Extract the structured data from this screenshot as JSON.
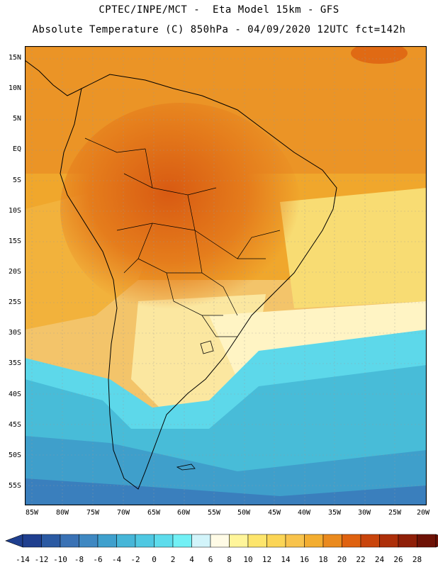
{
  "header": {
    "line1": "CPTEC/INPE/MCT -  Eta Model 15km - GFS",
    "line2": "Absolute Temperature (C) 850hPa - 04/09/2020 12UTC fct=142h"
  },
  "lat_labels": [
    "15N",
    "10N",
    "5N",
    "EQ",
    "5S",
    "10S",
    "15S",
    "20S",
    "25S",
    "30S",
    "35S",
    "40S",
    "45S",
    "50S",
    "55S"
  ],
  "lon_labels": [
    "85W",
    "80W",
    "75W",
    "70W",
    "65W",
    "60W",
    "55W",
    "50W",
    "45W",
    "40W",
    "35W",
    "30W",
    "25W",
    "20W"
  ],
  "colorbar": {
    "labels": [
      "-14",
      "-12",
      "-10",
      "-8",
      "-6",
      "-4",
      "-2",
      "0",
      "2",
      "4",
      "6",
      "8",
      "10",
      "12",
      "14",
      "16",
      "18",
      "20",
      "22",
      "24",
      "26",
      "28"
    ],
    "colors": [
      "#1f3f8f",
      "#2b5aa3",
      "#3a72b5",
      "#3f88c2",
      "#3fa0cd",
      "#46b6d8",
      "#4fc8e2",
      "#5ddcec",
      "#72f0f5",
      "#d2f4fa",
      "#fffbe6",
      "#fff59a",
      "#fde56c",
      "#fbd556",
      "#f8c34c",
      "#f3ad30",
      "#ea8a1e",
      "#df6210",
      "#c9450c",
      "#ad2f0a",
      "#8f1f08",
      "#6e1206"
    ]
  }
}
